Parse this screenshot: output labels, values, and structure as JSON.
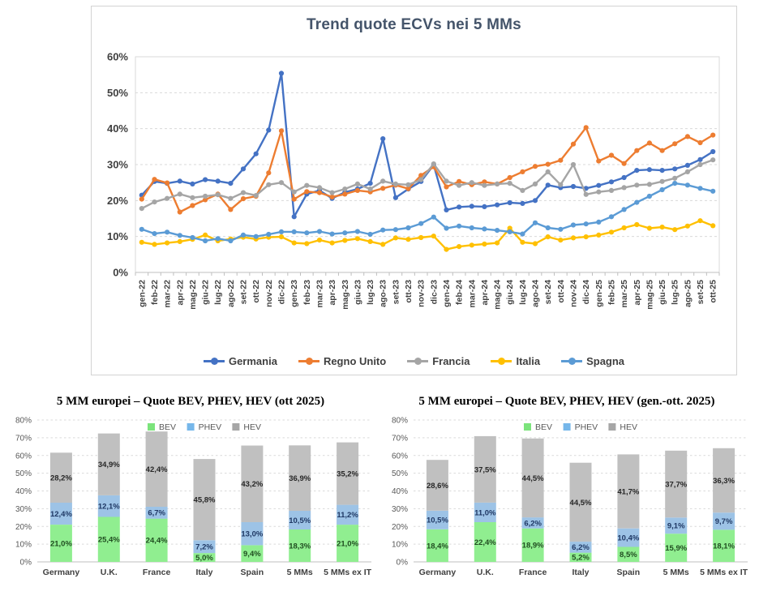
{
  "colors": {
    "grid": "#D9D9D9",
    "axis_line": "#BFBFBF",
    "line_axis_text": "#404040",
    "bar_axis_text": "#595959",
    "category_text": "#404040",
    "title_line_chart": "#44546A"
  },
  "chart_data": [
    {
      "type": "line",
      "title": "Trend quote ECVs nei 5 MMs",
      "ylim": [
        0,
        60
      ],
      "y_tick_labels": [
        "0%",
        "10%",
        "20%",
        "30%",
        "40%",
        "50%",
        "60%"
      ],
      "grid": "dashed-horizontal",
      "legend_position": "bottom",
      "x": [
        "gen-22",
        "feb-22",
        "mar-22",
        "apr-22",
        "mag-22",
        "giu-22",
        "lug-22",
        "ago-22",
        "set-22",
        "ott-22",
        "nov-22",
        "dic-22",
        "gen-23",
        "feb-23",
        "mar-23",
        "apr-23",
        "mag-23",
        "giu-23",
        "lug-23",
        "ago-23",
        "set-23",
        "ott-23",
        "nov-23",
        "dic-23",
        "gen-24",
        "feb-24",
        "mar-24",
        "apr-24",
        "mag-24",
        "giu-24",
        "lug-24",
        "ago-24",
        "set-24",
        "ott-24",
        "nov-24",
        "dic-24",
        "gen-25",
        "feb-25",
        "mar-25",
        "apr-25",
        "mag-25",
        "giu-25",
        "lug-25",
        "ago-25",
        "set-25",
        "ott-25"
      ],
      "series": [
        {
          "name": "Germania",
          "color": "#4472C4",
          "values": [
            21.5,
            25.3,
            24.8,
            25.4,
            24.6,
            25.8,
            25.4,
            24.8,
            28.8,
            33.0,
            39.6,
            55.4,
            15.5,
            21.8,
            22.8,
            20.6,
            22.3,
            23.2,
            24.8,
            37.2,
            20.8,
            23.2,
            25.3,
            29.9,
            17.4,
            18.2,
            18.4,
            18.3,
            18.8,
            19.4,
            19.2,
            20.0,
            24.3,
            23.6,
            23.9,
            23.4,
            24.2,
            25.2,
            26.4,
            28.4,
            28.6,
            28.4,
            28.8,
            29.8,
            31.4,
            33.6
          ]
        },
        {
          "name": "Regno Unito",
          "color": "#ED7D31",
          "values": [
            20.4,
            25.9,
            24.9,
            16.8,
            18.6,
            20.2,
            21.8,
            17.5,
            20.5,
            21.2,
            27.7,
            39.4,
            20.4,
            22.5,
            22.2,
            21.0,
            21.8,
            22.8,
            22.4,
            23.4,
            24.3,
            23.3,
            27.0,
            29.4,
            23.8,
            25.3,
            24.4,
            25.2,
            24.6,
            26.4,
            28.0,
            29.5,
            30.1,
            31.2,
            35.7,
            40.3,
            31.0,
            32.6,
            30.3,
            33.9,
            36.0,
            33.9,
            35.8,
            37.8,
            36.1,
            38.2
          ]
        },
        {
          "name": "Francia",
          "color": "#A5A5A5",
          "values": [
            17.8,
            19.6,
            20.6,
            21.8,
            20.8,
            21.2,
            21.6,
            20.6,
            22.2,
            21.4,
            24.4,
            25.0,
            22.4,
            24.2,
            23.6,
            22.2,
            23.2,
            24.6,
            23.2,
            25.4,
            24.6,
            24.4,
            25.8,
            30.2,
            25.4,
            24.2,
            25.0,
            24.2,
            24.6,
            24.8,
            22.8,
            24.6,
            28.0,
            24.4,
            30.0,
            21.7,
            22.4,
            22.8,
            23.6,
            24.3,
            24.5,
            25.3,
            26.2,
            28.0,
            30.0,
            31.3
          ]
        },
        {
          "name": "Italia",
          "color": "#FFC000",
          "values": [
            8.4,
            7.8,
            8.2,
            8.6,
            9.2,
            10.4,
            8.8,
            9.3,
            9.8,
            9.3,
            9.8,
            9.9,
            8.2,
            8.0,
            9.0,
            8.2,
            8.9,
            9.4,
            8.6,
            7.8,
            9.6,
            9.2,
            9.7,
            10.1,
            6.4,
            7.2,
            7.6,
            7.9,
            8.2,
            12.3,
            8.4,
            8.0,
            9.9,
            9.0,
            9.6,
            9.9,
            10.4,
            11.2,
            12.4,
            13.3,
            12.3,
            12.6,
            11.9,
            12.9,
            14.4,
            13.0
          ]
        },
        {
          "name": "Spagna",
          "color": "#5B9BD5",
          "values": [
            12.0,
            10.8,
            11.2,
            10.3,
            9.7,
            8.8,
            9.4,
            8.8,
            10.4,
            10.0,
            10.6,
            11.3,
            11.3,
            11.0,
            11.4,
            10.7,
            11.0,
            11.4,
            10.6,
            11.8,
            11.9,
            12.4,
            13.6,
            15.4,
            12.3,
            12.9,
            12.4,
            12.1,
            11.7,
            11.3,
            10.7,
            13.8,
            12.4,
            12.0,
            13.2,
            13.5,
            14.0,
            15.5,
            17.5,
            19.5,
            21.2,
            23.0,
            24.8,
            24.3,
            23.4,
            22.6
          ]
        }
      ]
    },
    {
      "type": "bar",
      "subtype": "stacked",
      "title": "5 MM europei – Quote BEV, PHEV, HEV (ott 2025)",
      "ylim": [
        0,
        80
      ],
      "y_tick_labels": [
        "0%",
        "10%",
        "20%",
        "30%",
        "40%",
        "50%",
        "60%",
        "70%",
        "80%"
      ],
      "legend": [
        {
          "label": "BEV",
          "swatch": "#7CE47C"
        },
        {
          "label": "PHEV",
          "swatch": "#76B7EA"
        },
        {
          "label": "HEV",
          "swatch": "#A6A6A6"
        }
      ],
      "categories": [
        "Germany",
        "U.K.",
        "France",
        "Italy",
        "Spain",
        "5 MMs",
        "5 MMs ex IT"
      ],
      "series": [
        {
          "name": "BEV",
          "color": "#90EE90",
          "label_color": "#204D20",
          "values": [
            21.0,
            25.4,
            24.4,
            5.0,
            9.4,
            18.3,
            21.0
          ],
          "labels": [
            "21,0%",
            "25,4%",
            "24,4%",
            "5,0%",
            "9,4%",
            "18,3%",
            "21,0%"
          ]
        },
        {
          "name": "PHEV",
          "color": "#9DC3E6",
          "label_color": "#1F3864",
          "values": [
            12.4,
            12.1,
            6.7,
            7.2,
            13.0,
            10.5,
            11.2
          ],
          "labels": [
            "12,4%",
            "12,1%",
            "6,7%",
            "7,2%",
            "13,0%",
            "10,5%",
            "11,2%"
          ]
        },
        {
          "name": "HEV",
          "color": "#C0C0C0",
          "label_color": "#262626",
          "values": [
            28.2,
            34.9,
            42.4,
            45.8,
            43.2,
            36.9,
            35.2
          ],
          "labels": [
            "28,2%",
            "34,9%",
            "42,4%",
            "45,8%",
            "43,2%",
            "36,9%",
            "35,2%"
          ]
        }
      ]
    },
    {
      "type": "bar",
      "subtype": "stacked",
      "title": "5 MM europei – Quote BEV, PHEV, HEV (gen.-ott. 2025)",
      "ylim": [
        0,
        80
      ],
      "y_tick_labels": [
        "0%",
        "10%",
        "20%",
        "30%",
        "40%",
        "50%",
        "60%",
        "70%",
        "80%"
      ],
      "legend": [
        {
          "label": "BEV",
          "swatch": "#7CE47C"
        },
        {
          "label": "PHEV",
          "swatch": "#76B7EA"
        },
        {
          "label": "HEV",
          "swatch": "#A6A6A6"
        }
      ],
      "categories": [
        "Germany",
        "U.K.",
        "France",
        "Italy",
        "Spain",
        "5 MMs",
        "5 MMs ex IT"
      ],
      "series": [
        {
          "name": "BEV",
          "color": "#90EE90",
          "label_color": "#204D20",
          "values": [
            18.4,
            22.4,
            18.9,
            5.2,
            8.5,
            15.9,
            18.1
          ],
          "labels": [
            "18,4%",
            "22,4%",
            "18,9%",
            "5,2%",
            "8,5%",
            "15,9%",
            "18,1%"
          ]
        },
        {
          "name": "PHEV",
          "color": "#9DC3E6",
          "label_color": "#1F3864",
          "values": [
            10.5,
            11.0,
            6.2,
            6.2,
            10.4,
            9.1,
            9.7
          ],
          "labels": [
            "10,5%",
            "11,0%",
            "6,2%",
            "6,2%",
            "10,4%",
            "9,1%",
            "9,7%"
          ]
        },
        {
          "name": "HEV",
          "color": "#C0C0C0",
          "label_color": "#262626",
          "values": [
            28.6,
            37.5,
            44.5,
            44.5,
            41.7,
            37.7,
            36.3
          ],
          "labels": [
            "28,6%",
            "37,5%",
            "44,5%",
            "44,5%",
            "41,7%",
            "37,7%",
            "36,3%"
          ]
        }
      ]
    }
  ]
}
